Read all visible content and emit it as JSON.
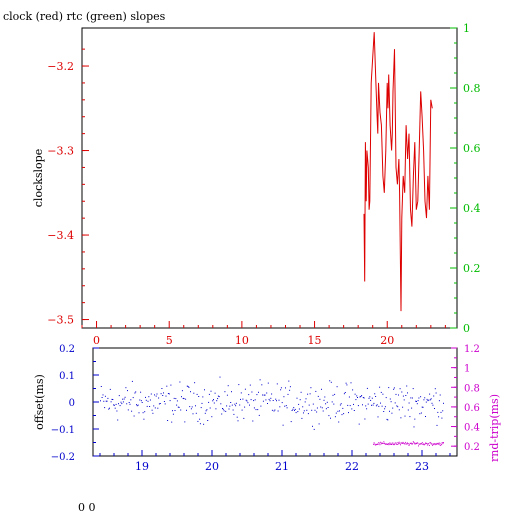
{
  "title": "clock (red) rtc (green) slopes",
  "footer_text": "0 0",
  "colors": {
    "red": "#dd0000",
    "green": "#00bb00",
    "blue": "#0000cc",
    "magenta": "#cc00cc",
    "axis": "#000000"
  },
  "chart_data": [
    {
      "type": "line",
      "title": "clock (red) rtc (green) slopes",
      "ylabel": "clockslope",
      "xlim": [
        -1,
        24.8
      ],
      "ylim": [
        -3.51,
        -3.155
      ],
      "xticks": [
        0,
        5,
        10,
        15,
        20
      ],
      "yticks": [
        -3.2,
        -3.3,
        -3.4,
        -3.5
      ],
      "y2lim": [
        0,
        1
      ],
      "y2ticks": [
        0,
        0.2,
        0.4,
        0.6,
        0.8,
        1
      ],
      "series": [
        {
          "color": "red",
          "x": [
            18.4,
            18.45,
            18.5,
            18.55,
            18.6,
            18.7,
            18.75,
            18.8,
            18.9,
            19.0,
            19.1,
            19.2,
            19.3,
            19.35,
            19.4,
            19.5,
            19.6,
            19.7,
            19.8,
            19.9,
            20.0,
            20.05,
            20.1,
            20.2,
            20.3,
            20.35,
            20.4,
            20.5,
            20.6,
            20.7,
            20.8,
            20.85,
            20.9,
            20.95,
            21.0,
            21.1,
            21.2,
            21.3,
            21.4,
            21.5,
            21.6,
            21.7,
            21.8,
            21.9,
            22.0,
            22.1,
            22.2,
            22.3,
            22.4,
            22.5,
            22.6,
            22.7,
            22.8,
            22.9,
            23.0,
            23.1
          ],
          "y": [
            -3.375,
            -3.455,
            -3.29,
            -3.36,
            -3.3,
            -3.32,
            -3.37,
            -3.36,
            -3.22,
            -3.19,
            -3.16,
            -3.21,
            -3.26,
            -3.28,
            -3.22,
            -3.255,
            -3.27,
            -3.33,
            -3.35,
            -3.3,
            -3.22,
            -3.25,
            -3.21,
            -3.27,
            -3.3,
            -3.28,
            -3.23,
            -3.18,
            -3.32,
            -3.34,
            -3.31,
            -3.35,
            -3.42,
            -3.49,
            -3.38,
            -3.33,
            -3.35,
            -3.27,
            -3.31,
            -3.28,
            -3.37,
            -3.39,
            -3.33,
            -3.29,
            -3.37,
            -3.36,
            -3.3,
            -3.23,
            -3.26,
            -3.3,
            -3.36,
            -3.38,
            -3.33,
            -3.37,
            -3.24,
            -3.25
          ]
        }
      ]
    },
    {
      "type": "scatter",
      "ylabel": "offset(ms)",
      "y2label": "rnd-trip(ms)",
      "xlim": [
        18.3,
        23.5
      ],
      "ylim": [
        -0.2,
        0.2
      ],
      "xticks": [
        19,
        20,
        21,
        22,
        23
      ],
      "yticks": [
        -0.2,
        -0.1,
        0,
        0.1,
        0.2
      ],
      "y2lim": [
        0.1,
        1.2
      ],
      "y2ticks": [
        0.2,
        0.4,
        0.6,
        0.8,
        1,
        1.2
      ],
      "series": [
        {
          "color": "blue",
          "axis": "left",
          "x_range": [
            18.4,
            23.3
          ],
          "count": 420,
          "center": 0.0,
          "spread": 0.05
        },
        {
          "color": "magenta",
          "axis": "right",
          "x_range": [
            22.3,
            23.3
          ],
          "count": 110,
          "center": 0.23,
          "spread": 0.012
        }
      ]
    }
  ]
}
